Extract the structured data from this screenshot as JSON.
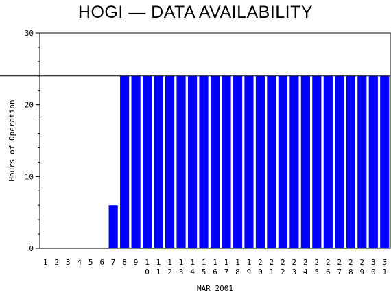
{
  "chart_data": {
    "type": "bar",
    "title": "HOGI — DATA AVAILABILITY",
    "xlabel": "MAR 2001",
    "ylabel": "Hours of Operation",
    "ylim": [
      0,
      30
    ],
    "yticks": [
      0,
      10,
      20,
      30
    ],
    "reference_line": 24,
    "bar_color": "#0000ff",
    "categories": [
      "1",
      "2",
      "3",
      "4",
      "5",
      "6",
      "7",
      "8",
      "9",
      "10",
      "11",
      "12",
      "13",
      "14",
      "15",
      "16",
      "17",
      "18",
      "19",
      "20",
      "21",
      "22",
      "23",
      "24",
      "25",
      "26",
      "27",
      "28",
      "29",
      "30",
      "31"
    ],
    "values": [
      0,
      0,
      0,
      0,
      0,
      0,
      6,
      24,
      24,
      24,
      24,
      24,
      24,
      24,
      24,
      24,
      24,
      24,
      24,
      24,
      24,
      24,
      24,
      24,
      24,
      24,
      24,
      24,
      24,
      24,
      24
    ]
  }
}
